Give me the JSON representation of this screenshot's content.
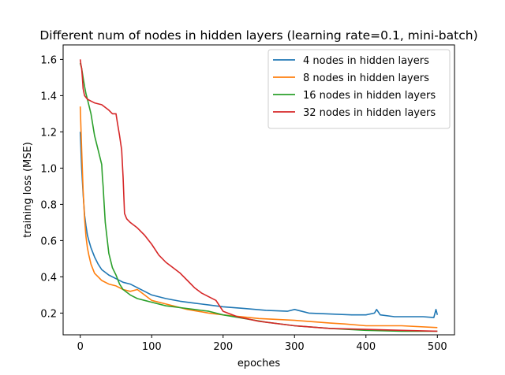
{
  "chart_data": {
    "type": "line",
    "title": "Different num of nodes in hidden layers (learning rate=0.1, mini-batch)",
    "xlabel": "epoches",
    "ylabel": "training loss (MSE)",
    "xlim": [
      -24,
      524
    ],
    "ylim": [
      0.08,
      1.68
    ],
    "xticks": [
      0,
      100,
      200,
      300,
      400,
      500
    ],
    "yticks": [
      0.2,
      0.4,
      0.6,
      0.8,
      1.0,
      1.2,
      1.4,
      1.6
    ],
    "xtick_labels": [
      "0",
      "100",
      "200",
      "300",
      "400",
      "500"
    ],
    "ytick_labels": [
      "0.2",
      "0.4",
      "0.6",
      "0.8",
      "1.0",
      "1.2",
      "1.4",
      "1.6"
    ],
    "grid": false,
    "legend_position": "top-right",
    "series": [
      {
        "name": "4 nodes in hidden layers",
        "color": "#1f77b4",
        "x": [
          0,
          2,
          4,
          6,
          8,
          10,
          12,
          15,
          20,
          25,
          30,
          40,
          50,
          60,
          70,
          80,
          90,
          100,
          120,
          140,
          160,
          180,
          200,
          230,
          260,
          290,
          300,
          320,
          350,
          380,
          400,
          412,
          415,
          420,
          440,
          460,
          480,
          495,
          498,
          500
        ],
        "y": [
          1.2,
          1.0,
          0.86,
          0.74,
          0.68,
          0.63,
          0.6,
          0.56,
          0.51,
          0.47,
          0.44,
          0.41,
          0.39,
          0.37,
          0.36,
          0.34,
          0.32,
          0.3,
          0.28,
          0.265,
          0.255,
          0.245,
          0.235,
          0.225,
          0.215,
          0.21,
          0.22,
          0.2,
          0.195,
          0.19,
          0.19,
          0.2,
          0.22,
          0.19,
          0.18,
          0.18,
          0.18,
          0.175,
          0.22,
          0.19
        ]
      },
      {
        "name": "8 nodes in hidden layers",
        "color": "#ff7f0e",
        "x": [
          0,
          2,
          4,
          6,
          8,
          10,
          12,
          15,
          20,
          25,
          30,
          40,
          50,
          60,
          70,
          80,
          90,
          100,
          120,
          150,
          180,
          200,
          250,
          300,
          350,
          370,
          400,
          450,
          500
        ],
        "y": [
          1.34,
          1.1,
          0.88,
          0.72,
          0.62,
          0.56,
          0.52,
          0.47,
          0.42,
          0.4,
          0.38,
          0.36,
          0.35,
          0.33,
          0.32,
          0.33,
          0.3,
          0.27,
          0.25,
          0.22,
          0.2,
          0.19,
          0.17,
          0.16,
          0.145,
          0.14,
          0.13,
          0.13,
          0.12
        ]
      },
      {
        "name": "16 nodes in hidden layers",
        "color": "#2ca02c",
        "x": [
          0,
          2,
          4,
          6,
          8,
          10,
          15,
          20,
          25,
          30,
          31,
          32,
          33,
          35,
          40,
          45,
          50,
          55,
          60,
          70,
          80,
          90,
          100,
          120,
          140,
          160,
          180,
          200,
          230,
          260,
          300,
          350,
          400,
          450,
          500
        ],
        "y": [
          1.58,
          1.55,
          1.5,
          1.45,
          1.41,
          1.38,
          1.3,
          1.18,
          1.1,
          1.02,
          0.95,
          0.9,
          0.83,
          0.7,
          0.53,
          0.45,
          0.41,
          0.36,
          0.33,
          0.3,
          0.28,
          0.27,
          0.26,
          0.24,
          0.23,
          0.22,
          0.21,
          0.19,
          0.17,
          0.15,
          0.13,
          0.115,
          0.105,
          0.1,
          0.1
        ]
      },
      {
        "name": "32 nodes in hidden layers",
        "color": "#d62728",
        "x": [
          0,
          1,
          2,
          3,
          4,
          5,
          6,
          8,
          10,
          15,
          20,
          30,
          40,
          45,
          50,
          52,
          55,
          58,
          60,
          62,
          65,
          70,
          80,
          90,
          100,
          110,
          120,
          130,
          140,
          150,
          160,
          170,
          180,
          190,
          200,
          220,
          250,
          300,
          350,
          400,
          450,
          500
        ],
        "y": [
          1.6,
          1.57,
          1.55,
          1.5,
          1.44,
          1.42,
          1.4,
          1.39,
          1.38,
          1.37,
          1.36,
          1.35,
          1.32,
          1.3,
          1.3,
          1.25,
          1.18,
          1.1,
          0.95,
          0.75,
          0.72,
          0.7,
          0.67,
          0.63,
          0.58,
          0.52,
          0.48,
          0.45,
          0.42,
          0.38,
          0.34,
          0.31,
          0.29,
          0.27,
          0.21,
          0.18,
          0.155,
          0.13,
          0.115,
          0.11,
          0.105,
          0.1
        ]
      }
    ]
  }
}
